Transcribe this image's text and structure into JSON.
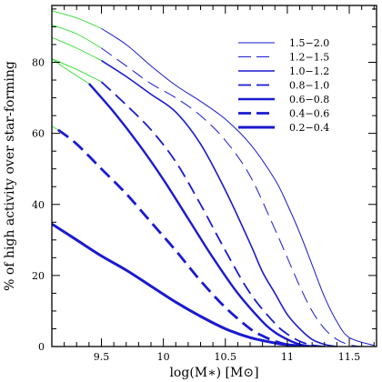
{
  "chart_data": {
    "type": "line",
    "xlabel": "log(M∗) [M⊙]",
    "ylabel": "% of high activity over star-forming",
    "xlim": [
      9.1,
      11.72
    ],
    "ylim": [
      0,
      96
    ],
    "xticks": [
      9.5,
      10,
      10.5,
      11,
      11.5
    ],
    "xtick_labels": [
      "9.5",
      "10",
      "10.5",
      "11",
      "11.5"
    ],
    "yticks": [
      0,
      20,
      40,
      60,
      80
    ],
    "ytick_labels": [
      "0",
      "20",
      "40",
      "60",
      "80"
    ],
    "legend_position": "top-right",
    "grid": false,
    "colors": {
      "main": "#1a1ad0",
      "extrapolated": "#33dd33",
      "axes": "#000000"
    },
    "series": [
      {
        "name": "1.5−2.0",
        "style": "thin-solid",
        "green_until": 9.5,
        "x": [
          9.1,
          9.3,
          9.5,
          9.7,
          9.9,
          10.1,
          10.3,
          10.5,
          10.7,
          10.9,
          11.0,
          11.1,
          11.2,
          11.3,
          11.4,
          11.5,
          11.7
        ],
        "y": [
          94.5,
          92.5,
          89.5,
          85,
          79,
          73.5,
          69,
          64,
          57,
          47,
          40,
          32,
          23,
          14,
          7,
          2.5,
          0.3
        ]
      },
      {
        "name": "1.2−1.5",
        "style": "thin-dashed",
        "green_until": 9.5,
        "x": [
          9.1,
          9.3,
          9.5,
          9.7,
          9.9,
          10.1,
          10.3,
          10.5,
          10.7,
          10.9,
          11.0,
          11.1,
          11.2,
          11.3,
          11.4,
          11.5,
          11.6
        ],
        "y": [
          90.5,
          88,
          84,
          79,
          74,
          70,
          65,
          58,
          48,
          33,
          25,
          17,
          10,
          5,
          2,
          0.5,
          0
        ]
      },
      {
        "name": "1.0−1.2",
        "style": "medium-solid",
        "green_until": 9.5,
        "x": [
          9.1,
          9.3,
          9.5,
          9.7,
          9.9,
          10.1,
          10.3,
          10.5,
          10.7,
          10.8,
          10.9,
          11.0,
          11.1,
          11.2,
          11.3,
          11.4
        ],
        "y": [
          87,
          84,
          80.5,
          76,
          71,
          66,
          57,
          44,
          29,
          21,
          15,
          9,
          5,
          2,
          0.6,
          0
        ]
      },
      {
        "name": "0.8−1.0",
        "style": "medium-dashed",
        "green_until": 9.5,
        "x": [
          9.1,
          9.3,
          9.5,
          9.7,
          9.9,
          10.1,
          10.3,
          10.5,
          10.7,
          10.9,
          11.0,
          11.1,
          11.2,
          11.3
        ],
        "y": [
          81,
          78,
          74.5,
          68,
          61,
          52,
          40,
          27,
          15,
          6.5,
          3.5,
          1.5,
          0.4,
          0
        ]
      },
      {
        "name": "0.6−0.8",
        "style": "thick-solid",
        "green_until": 9.4,
        "x": [
          9.1,
          9.2,
          9.4,
          9.6,
          9.8,
          10.0,
          10.2,
          10.4,
          10.6,
          10.8,
          10.9,
          11.0,
          11.1,
          11.2
        ],
        "y": [
          81,
          78.5,
          74,
          66,
          57,
          47,
          36,
          25,
          15,
          7,
          4,
          2,
          0.6,
          0
        ]
      },
      {
        "name": "0.4−0.6",
        "style": "thick-dashed",
        "green_until": 9.15,
        "x": [
          9.1,
          9.15,
          9.3,
          9.5,
          9.7,
          9.9,
          10.1,
          10.3,
          10.5,
          10.7,
          10.8,
          10.9,
          11.0,
          11.1
        ],
        "y": [
          62,
          61,
          57,
          50,
          43,
          35,
          27,
          18.5,
          11,
          5,
          3,
          1.5,
          0.5,
          0
        ]
      },
      {
        "name": "0.2−0.4",
        "style": "thicker-solid",
        "green_until": null,
        "x": [
          9.1,
          9.3,
          9.5,
          9.7,
          9.9,
          10.1,
          10.3,
          10.5,
          10.7,
          10.9,
          11.0,
          11.1,
          11.2
        ],
        "y": [
          34.5,
          30,
          25.5,
          21.5,
          17,
          12.5,
          8.5,
          5,
          2.5,
          1,
          0.5,
          0.2,
          0
        ]
      }
    ]
  }
}
